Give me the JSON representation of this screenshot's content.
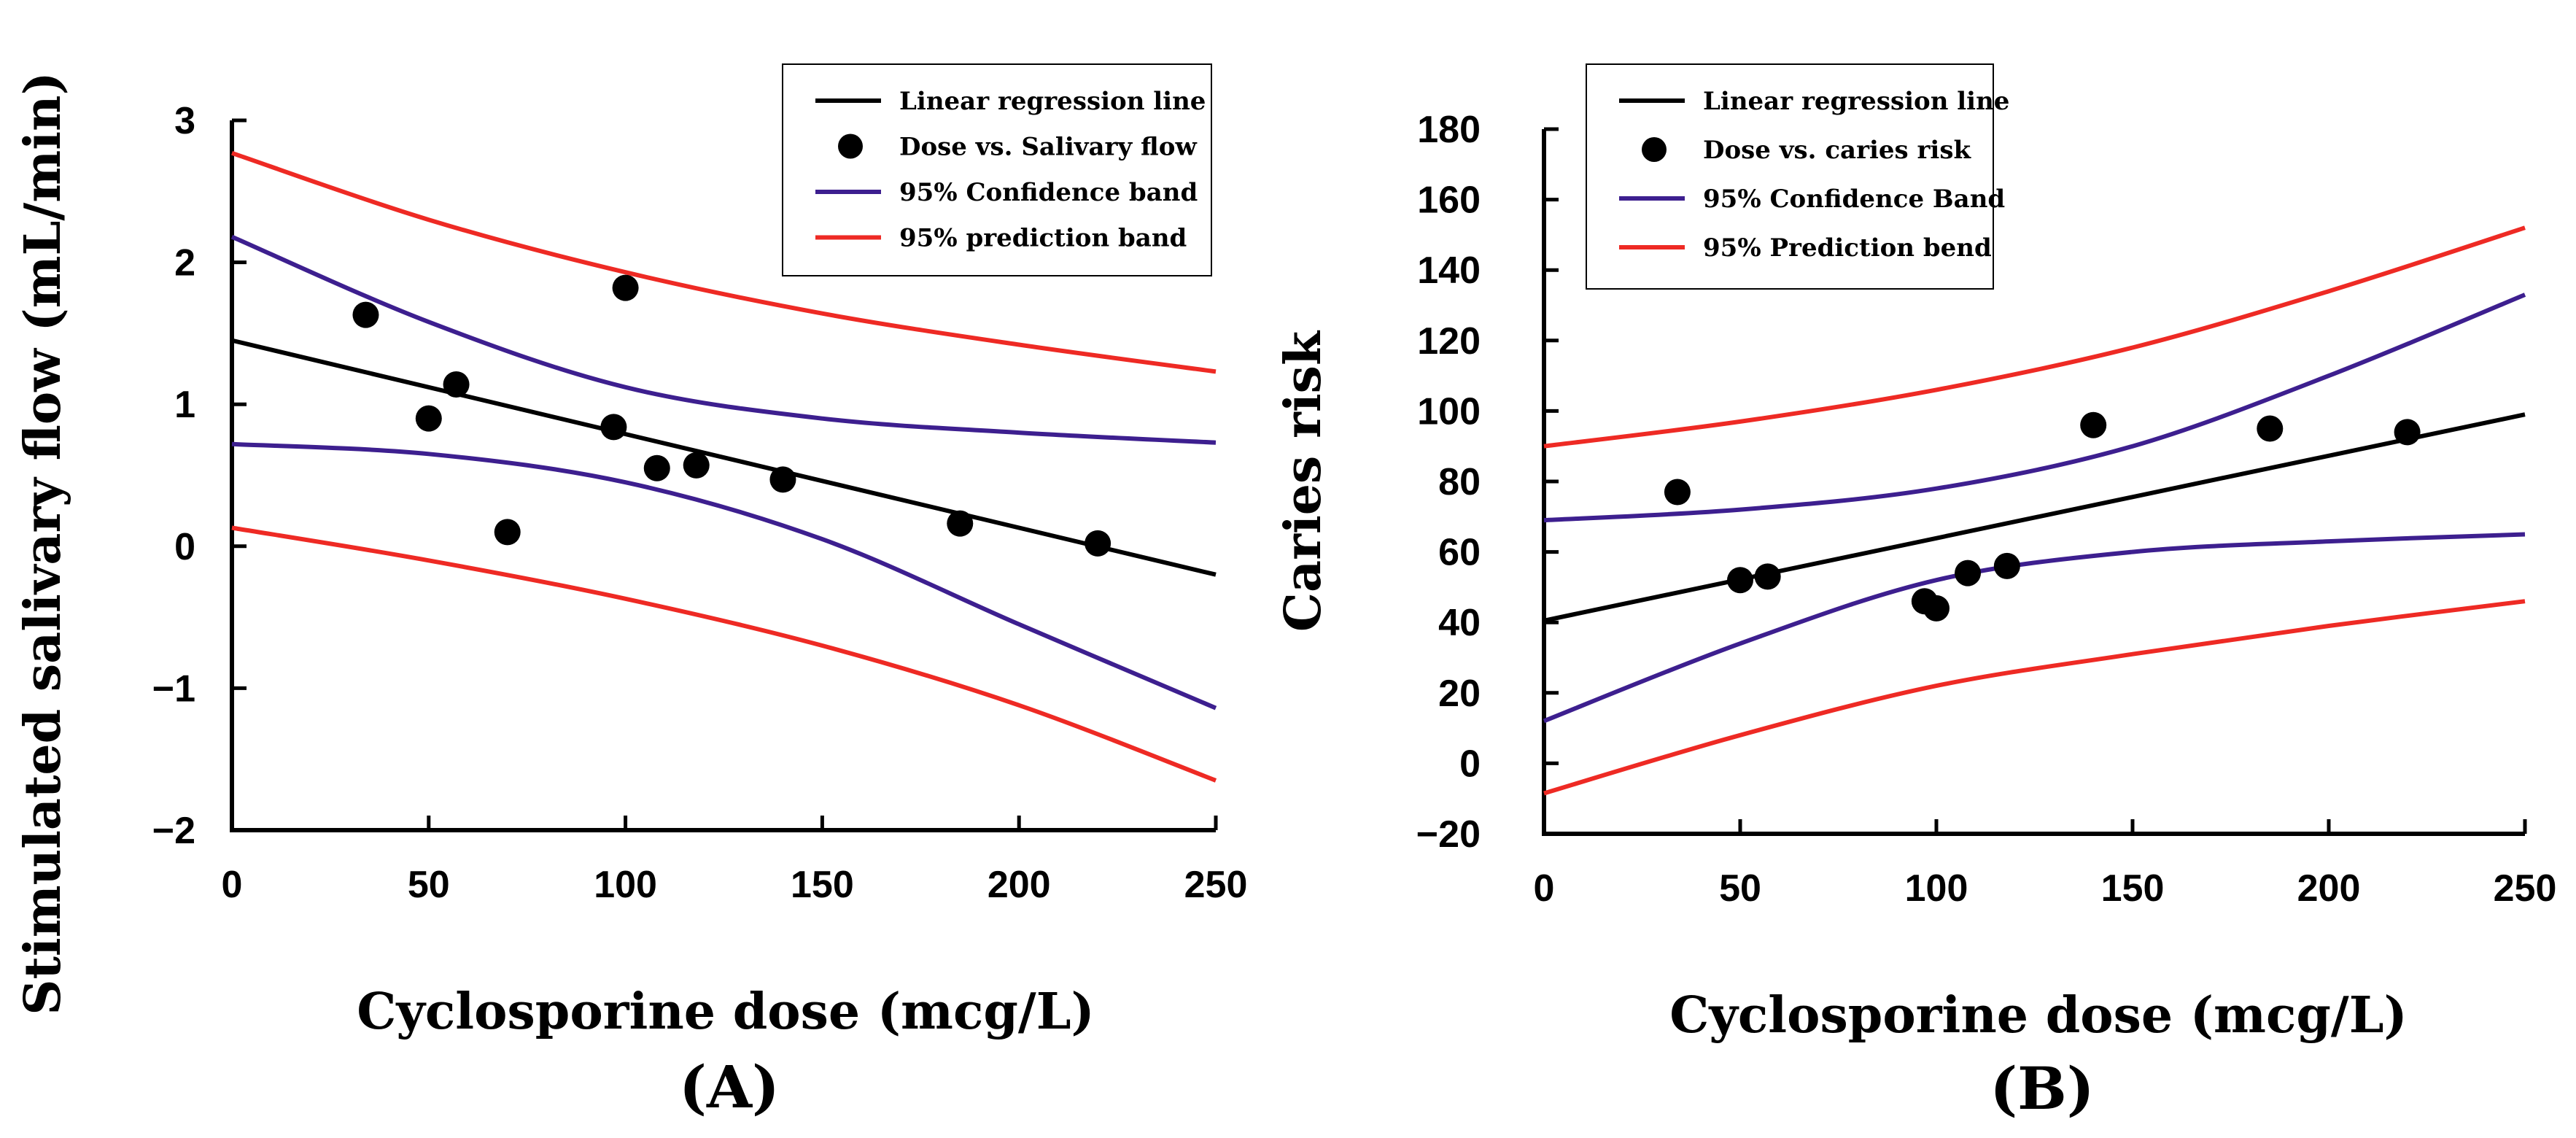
{
  "chart_data": [
    {
      "panel_label": "(A)",
      "type": "scatter",
      "xlabel": "Cyclosporine dose (mcg/L)",
      "ylabel": "Stimulated salivary flow (mL/min)",
      "xlim": [
        0,
        250
      ],
      "ylim": [
        -2,
        3
      ],
      "xticks": [
        0,
        50,
        100,
        150,
        200,
        250
      ],
      "yticks": [
        -2,
        -1,
        0,
        1,
        2,
        3
      ],
      "xtick_labels": [
        "0",
        "50",
        "100",
        "150",
        "200",
        "250"
      ],
      "ytick_labels": [
        "−2",
        "−1",
        "0",
        "1",
        "2",
        "3"
      ],
      "legend_position": "top-right",
      "legend": [
        {
          "label": "Linear regression line",
          "kind": "line",
          "color": "#000000"
        },
        {
          "label": "Dose vs. Salivary flow",
          "kind": "marker",
          "color": "#000000"
        },
        {
          "label": "95% Confidence band",
          "kind": "line",
          "color": "#3d1f8f"
        },
        {
          "label": "95% prediction band",
          "kind": "line",
          "color": "#ee2a24"
        }
      ],
      "points": {
        "x": [
          34,
          50,
          57,
          70,
          97,
          100,
          108,
          118,
          140,
          185,
          220
        ],
        "y": [
          1.63,
          0.9,
          1.14,
          0.1,
          0.84,
          1.82,
          0.55,
          0.57,
          0.47,
          0.16,
          0.02
        ]
      },
      "regression": {
        "x": [
          0,
          250
        ],
        "y": [
          1.45,
          -0.2
        ]
      },
      "confidence_upper": {
        "x": [
          0,
          50,
          100,
          150,
          200,
          250
        ],
        "y": [
          2.18,
          1.58,
          1.12,
          0.9,
          0.8,
          0.73
        ]
      },
      "confidence_lower": {
        "x": [
          0,
          50,
          100,
          150,
          200,
          250
        ],
        "y": [
          0.72,
          0.65,
          0.45,
          0.05,
          -0.55,
          -1.14
        ]
      },
      "prediction_upper": {
        "x": [
          0,
          50,
          100,
          150,
          200,
          250
        ],
        "y": [
          2.77,
          2.3,
          1.93,
          1.64,
          1.42,
          1.23
        ]
      },
      "prediction_lower": {
        "x": [
          0,
          50,
          100,
          150,
          200,
          250
        ],
        "y": [
          0.13,
          -0.1,
          -0.37,
          -0.7,
          -1.12,
          -1.65
        ]
      }
    },
    {
      "panel_label": "(B)",
      "type": "scatter",
      "xlabel": "Cyclosporine dose (mcg/L)",
      "ylabel": "Caries risk",
      "xlim": [
        0,
        250
      ],
      "ylim": [
        -20,
        180
      ],
      "xticks": [
        0,
        50,
        100,
        150,
        200,
        250
      ],
      "yticks": [
        -20,
        0,
        20,
        40,
        60,
        80,
        100,
        120,
        140,
        160,
        180
      ],
      "xtick_labels": [
        "0",
        "50",
        "100",
        "150",
        "200",
        "250"
      ],
      "ytick_labels": [
        "−20",
        "0",
        "20",
        "40",
        "60",
        "80",
        "100",
        "120",
        "140",
        "160",
        "180"
      ],
      "legend_position": "top-left",
      "legend": [
        {
          "label": "Linear regression line",
          "kind": "line",
          "color": "#000000"
        },
        {
          "label": "Dose vs. caries risk",
          "kind": "marker",
          "color": "#000000"
        },
        {
          "label": "95% Confidence Band",
          "kind": "line",
          "color": "#3d1f8f"
        },
        {
          "label": "95% Prediction bend",
          "kind": "line",
          "color": "#ee2a24"
        }
      ],
      "points": {
        "x": [
          34,
          50,
          57,
          97,
          100,
          108,
          118,
          140,
          185,
          220
        ],
        "y": [
          77,
          52,
          53,
          46,
          44,
          54,
          56,
          96,
          95,
          94
        ]
      },
      "regression": {
        "x": [
          0,
          250
        ],
        "y": [
          40.5,
          99
        ]
      },
      "confidence_upper": {
        "x": [
          0,
          50,
          100,
          150,
          200,
          250
        ],
        "y": [
          69,
          72,
          78,
          90,
          110,
          133
        ]
      },
      "confidence_lower": {
        "x": [
          0,
          50,
          100,
          150,
          200,
          250
        ],
        "y": [
          12,
          34,
          52,
          60,
          63,
          65
        ]
      },
      "prediction_upper": {
        "x": [
          0,
          50,
          100,
          150,
          200,
          250
        ],
        "y": [
          90,
          97,
          106,
          118,
          134,
          152
        ]
      },
      "prediction_lower": {
        "x": [
          0,
          50,
          100,
          150,
          200,
          250
        ],
        "y": [
          -8.5,
          8,
          22,
          31,
          39,
          46
        ]
      }
    }
  ]
}
